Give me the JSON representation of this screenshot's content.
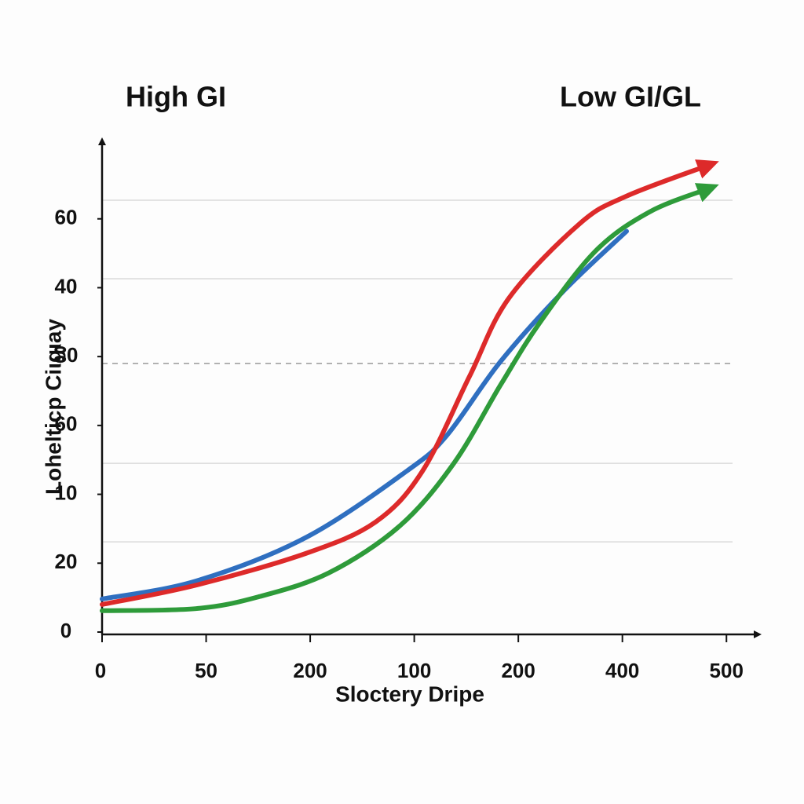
{
  "chart_data": {
    "type": "line",
    "annotations": [
      "High GI",
      "Low GI/GL"
    ],
    "xlabel": "Sloctery Dripe",
    "ylabel": "Loheltіcp Ciιgιay",
    "xlim": [
      0,
      630
    ],
    "ylim": [
      0,
      70
    ],
    "xticks": [
      0,
      {
        "value": 100,
        "label": "50"
      },
      200,
      {
        "value": 300,
        "label": "100"
      },
      {
        "value": 400,
        "label": "200"
      },
      {
        "value": 500,
        "label": "400"
      },
      {
        "value": 600,
        "label": "500"
      }
    ],
    "yticks": [
      0,
      {
        "value": 10,
        "label": "20"
      },
      {
        "value": 20,
        "label": "10"
      },
      {
        "value": 30,
        "label": "60"
      },
      {
        "value": 40,
        "label": "ⵓ0"
      },
      {
        "value": 50,
        "label": "40"
      },
      {
        "value": 60,
        "label": "60"
      }
    ],
    "hlines": [
      {
        "value": 62.7,
        "style": "solid"
      },
      {
        "value": 51.3,
        "style": "solid"
      },
      {
        "value": 39,
        "style": "dashed"
      },
      {
        "value": 24.5,
        "style": "solid"
      },
      {
        "value": 13.1,
        "style": "solid"
      }
    ],
    "series": [
      {
        "color": "#2f6fc0",
        "arrow": false,
        "x": [
          0,
          90,
          195.5,
          293,
          331,
          383,
          444,
          504
        ],
        "values": [
          4.8,
          7.4,
          13.7,
          23.4,
          28.5,
          39.3,
          49.6,
          58.2
        ]
      },
      {
        "color": "#dd2a2a",
        "arrow": true,
        "x": [
          0,
          90,
          195.5,
          263,
          308,
          353,
          391,
          459,
          504,
          583
        ],
        "values": [
          4.0,
          6.8,
          11.4,
          16,
          23.4,
          37.1,
          48.5,
          59.3,
          63.3,
          67.8
        ]
      },
      {
        "color": "#2e9b3a",
        "arrow": true,
        "x": [
          0,
          90,
          150,
          218,
          286,
          338,
          383,
          421,
          474,
          526,
          583
        ],
        "values": [
          3.1,
          3.4,
          5.1,
          8.6,
          15.4,
          24.5,
          35.9,
          45,
          55.3,
          61,
          64.4
        ]
      }
    ]
  }
}
